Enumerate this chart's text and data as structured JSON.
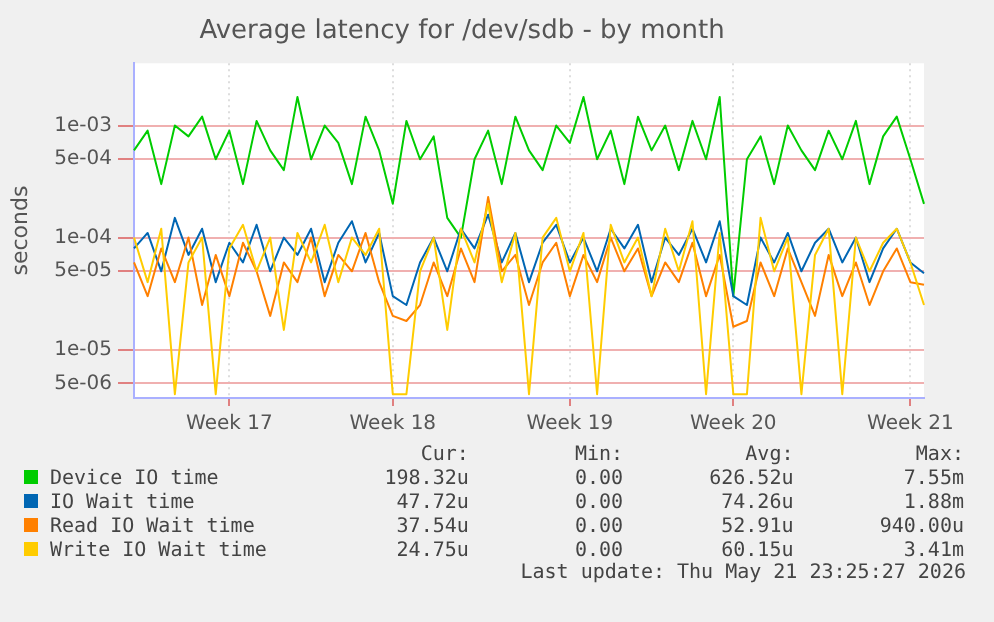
{
  "chart_data": {
    "type": "line",
    "title": "Average latency for /dev/sdb - by month",
    "ylabel": "seconds",
    "log": "y",
    "grid": true,
    "legend": "bottom",
    "marker": "none",
    "categories": [
      null,
      null,
      null,
      null,
      null,
      null,
      null,
      "Week 17",
      null,
      null,
      null,
      null,
      null,
      null,
      null,
      null,
      null,
      null,
      null,
      "Week 18",
      null,
      null,
      null,
      null,
      null,
      null,
      null,
      null,
      null,
      null,
      null,
      null,
      "Week 19",
      null,
      null,
      null,
      null,
      null,
      null,
      null,
      null,
      null,
      null,
      null,
      "Week 20",
      null,
      null,
      null,
      null,
      null,
      null,
      null,
      null,
      null,
      null,
      null,
      null,
      "Week 21",
      null
    ],
    "ylim": [
      3.7e-06,
      0.0036
    ],
    "yticks": [
      {
        "value": 5e-06,
        "label": "5e-06"
      },
      {
        "value": 1e-05,
        "label": "1e-05"
      },
      {
        "value": 5e-05,
        "label": "5e-05"
      },
      {
        "value": 0.0001,
        "label": "1e-04"
      },
      {
        "value": 0.0005,
        "label": "5e-04"
      },
      {
        "value": 0.001,
        "label": "1e-03"
      }
    ],
    "series": [
      {
        "name": "Device IO time",
        "color": "#00cc00",
        "values": [
          0.0006,
          0.0009,
          0.0003,
          0.001,
          0.0008,
          0.0012,
          0.0005,
          0.0009,
          0.0003,
          0.0011,
          0.0006,
          0.0004,
          0.0018,
          0.0005,
          0.001,
          0.0007,
          0.0003,
          0.0012,
          0.0006,
          0.0002,
          0.0011,
          0.0005,
          0.0008,
          0.00015,
          0.0001,
          0.0005,
          0.0009,
          0.0003,
          0.0012,
          0.0006,
          0.0004,
          0.001,
          0.0007,
          0.0018,
          0.0005,
          0.0009,
          0.0003,
          0.0012,
          0.0006,
          0.001,
          0.0004,
          0.0011,
          0.0005,
          0.0018,
          3e-05,
          0.0005,
          0.0008,
          0.0003,
          0.001,
          0.0006,
          0.0004,
          0.0009,
          0.0005,
          0.0011,
          0.0003,
          0.0008,
          0.0012,
          0.0005,
          0.0002
        ]
      },
      {
        "name": "IO Wait time",
        "color": "#0066b3",
        "values": [
          8e-05,
          0.00011,
          5e-05,
          0.00015,
          7e-05,
          0.00012,
          4e-05,
          9e-05,
          6e-05,
          0.00013,
          5e-05,
          0.0001,
          7e-05,
          0.00012,
          4e-05,
          9e-05,
          0.00014,
          6e-05,
          0.00011,
          3e-05,
          2.5e-05,
          6e-05,
          0.0001,
          5e-05,
          0.00012,
          8e-05,
          0.00016,
          6e-05,
          0.00011,
          4e-05,
          9e-05,
          0.00013,
          6e-05,
          0.0001,
          5e-05,
          0.00012,
          8e-05,
          0.00013,
          4e-05,
          0.0001,
          7e-05,
          0.00012,
          6e-05,
          0.00014,
          3e-05,
          2.5e-05,
          0.0001,
          6e-05,
          0.00011,
          5e-05,
          9e-05,
          0.00012,
          6e-05,
          0.0001,
          4e-05,
          8e-05,
          0.00012,
          6e-05,
          4.8e-05
        ]
      },
      {
        "name": "Read IO Wait time",
        "color": "#ff8000",
        "values": [
          6e-05,
          3e-05,
          8e-05,
          4e-05,
          0.0001,
          2.5e-05,
          7e-05,
          3e-05,
          9e-05,
          5e-05,
          2e-05,
          6e-05,
          4e-05,
          0.0001,
          3e-05,
          7e-05,
          5e-05,
          0.00011,
          4e-05,
          2e-05,
          1.8e-05,
          2.5e-05,
          6e-05,
          3e-05,
          8e-05,
          4e-05,
          0.00023,
          5e-05,
          7e-05,
          2.5e-05,
          6e-05,
          9e-05,
          3e-05,
          7e-05,
          4e-05,
          0.0001,
          5e-05,
          8e-05,
          3e-05,
          6e-05,
          4e-05,
          9e-05,
          3e-05,
          7e-05,
          1.6e-05,
          1.8e-05,
          6e-05,
          3e-05,
          8e-05,
          4e-05,
          2e-05,
          7e-05,
          3e-05,
          6e-05,
          2.5e-05,
          5e-05,
          8e-05,
          4e-05,
          3.8e-05
        ]
      },
      {
        "name": "Write IO Wait time",
        "color": "#ffcc00",
        "values": [
          0.0001,
          4e-05,
          0.00012,
          4e-06,
          6e-05,
          0.0001,
          4e-06,
          8e-05,
          0.00013,
          5e-05,
          0.0001,
          1.5e-05,
          0.00011,
          6e-05,
          0.00013,
          4e-05,
          0.0001,
          7e-05,
          0.00012,
          4e-06,
          4e-06,
          5e-05,
          0.0001,
          1.5e-05,
          0.00012,
          6e-05,
          0.0002,
          4e-05,
          0.00011,
          4e-06,
          0.0001,
          0.00015,
          5e-05,
          0.00011,
          4e-06,
          0.00013,
          6e-05,
          0.0001,
          3e-05,
          0.00012,
          5e-05,
          0.00014,
          4e-06,
          0.00011,
          4e-06,
          4e-06,
          0.00015,
          5e-05,
          0.0001,
          4e-06,
          7e-05,
          0.00012,
          4e-06,
          0.0001,
          5e-05,
          9e-05,
          0.00012,
          6e-05,
          2.5e-05
        ]
      }
    ],
    "annotations": [
      "Cur:",
      "Min:",
      "Avg:",
      "Max:",
      "198.32u",
      "0.00",
      "626.52u",
      "7.55m",
      "47.72u",
      "0.00",
      "74.26u",
      "1.88m",
      "37.54u",
      "0.00",
      "52.91u",
      "940.00u",
      "24.75u",
      "0.00",
      "60.15u",
      "3.41m",
      "Last update: Thu May 21 23:25:27 2026"
    ]
  }
}
